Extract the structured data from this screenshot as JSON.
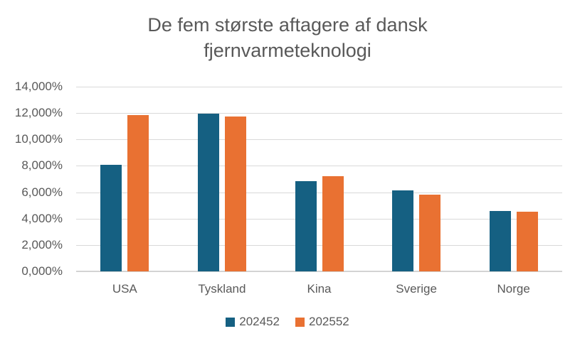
{
  "title": {
    "line1": "De fem største aftagere af dansk",
    "line2": "fjernvarmeteknologi"
  },
  "colors": {
    "series1": "#156082",
    "series2": "#E97132",
    "gridline": "#D9D9D9",
    "axis_line": "#D3D3D3",
    "text": "#595959",
    "background": "#FFFFFF"
  },
  "chart_data": {
    "type": "bar",
    "title": "De fem største aftagere af dansk fjernvarmeteknologi",
    "xlabel": "",
    "ylabel": "",
    "categories": [
      "USA",
      "Tyskland",
      "Kina",
      "Sverige",
      "Norge"
    ],
    "series": [
      {
        "name": "202452",
        "color": "#156082",
        "values": [
          8.1,
          11.95,
          6.85,
          6.15,
          4.6
        ]
      },
      {
        "name": "202552",
        "color": "#E97132",
        "values": [
          11.85,
          11.75,
          7.2,
          5.8,
          4.5
        ]
      }
    ],
    "ylim": [
      0,
      14
    ],
    "y_tick_step": 2,
    "y_tick_labels": [
      "0,000%",
      "2,000%",
      "4,000%",
      "6,000%",
      "8,000%",
      "10,000%",
      "12,000%",
      "14,000%"
    ],
    "grid": true,
    "legend_position": "bottom"
  }
}
